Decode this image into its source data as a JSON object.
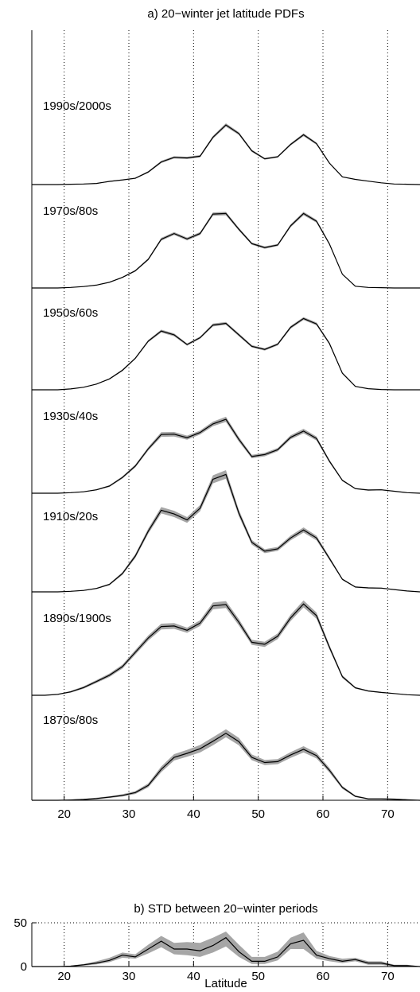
{
  "chart_data": [
    {
      "type": "area",
      "title": "a) 20−winter jet latitude PDFs",
      "xlabel": "",
      "ylabel": "",
      "xlim": [
        15,
        75
      ],
      "xticks": [
        20,
        30,
        40,
        50,
        60,
        70
      ],
      "grid": "vertical dotted lines at x ticks",
      "colors": {
        "line": "#000000",
        "band": "#a6a6a6"
      },
      "x": [
        15,
        17,
        19,
        21,
        23,
        25,
        27,
        29,
        31,
        33,
        35,
        37,
        39,
        41,
        43,
        45,
        47,
        49,
        51,
        53,
        55,
        57,
        59,
        61,
        63,
        65,
        67,
        69,
        71,
        73,
        75
      ],
      "series": [
        {
          "name": "1990s/2000s",
          "values": [
            0,
            0,
            0,
            1,
            2,
            4,
            11,
            16,
            22,
            44,
            79,
            95,
            93,
            99,
            165,
            208,
            178,
            118,
            90,
            97,
            140,
            174,
            143,
            75,
            27,
            18,
            12,
            6,
            2,
            1,
            0
          ],
          "uncertainty": [
            0,
            0,
            0,
            0.5,
            1,
            1,
            1.5,
            2,
            2,
            3,
            4,
            4,
            4,
            4,
            5,
            6,
            5,
            4,
            3,
            3,
            4,
            5,
            4,
            2,
            1,
            1,
            1,
            0.5,
            0.5,
            0,
            0
          ]
        },
        {
          "name": "1970s/80s",
          "values": [
            0,
            0,
            0,
            2,
            5,
            10,
            20,
            37,
            60,
            100,
            170,
            190,
            171,
            190,
            258,
            260,
            205,
            155,
            141,
            150,
            217,
            260,
            233,
            154,
            48,
            6,
            2,
            1,
            0,
            0,
            0
          ],
          "uncertainty": [
            0,
            0,
            0,
            0.5,
            1,
            1,
            2,
            2,
            3,
            4,
            5,
            5,
            5,
            5,
            6,
            6,
            5,
            4,
            4,
            4,
            5,
            6,
            5,
            4,
            2,
            1,
            0.5,
            0.5,
            0,
            0,
            0
          ]
        },
        {
          "name": "1950s/60s",
          "values": [
            0,
            0,
            0,
            3,
            9,
            20,
            38,
            68,
            110,
            170,
            205,
            192,
            158,
            182,
            226,
            232,
            192,
            152,
            141,
            159,
            218,
            249,
            230,
            162,
            58,
            12,
            4,
            1,
            0,
            0,
            0
          ],
          "uncertainty": [
            0,
            0,
            0,
            0.5,
            1,
            1.5,
            2,
            3,
            3,
            4,
            5,
            5,
            4,
            4,
            5,
            5,
            5,
            4,
            4,
            4,
            5,
            5,
            5,
            4,
            2,
            1,
            0.5,
            0.5,
            0,
            0,
            0
          ]
        },
        {
          "name": "1930s/40s",
          "values": [
            0,
            0,
            0,
            2,
            5,
            12,
            25,
            55,
            95,
            155,
            205,
            206,
            194,
            212,
            242,
            258,
            188,
            128,
            135,
            152,
            195,
            217,
            191,
            112,
            45,
            16,
            11,
            12,
            7,
            2,
            0
          ],
          "uncertainty": [
            0,
            0,
            0,
            1,
            1.5,
            2,
            3,
            4,
            5,
            6,
            8,
            8,
            7,
            7,
            8,
            9,
            8,
            6,
            6,
            6,
            7,
            8,
            7,
            5,
            3,
            2,
            2,
            2,
            1,
            0.5,
            0
          ]
        },
        {
          "name": "1910s/20s",
          "values": [
            0,
            0,
            0,
            2,
            5,
            12,
            26,
            64,
            125,
            212,
            285,
            272,
            251,
            292,
            393,
            410,
            275,
            173,
            142,
            150,
            188,
            216,
            188,
            117,
            44,
            17,
            14,
            13,
            8,
            3,
            0
          ],
          "uncertainty": [
            0,
            0,
            0,
            1,
            1.5,
            2,
            3,
            5,
            7,
            9,
            11,
            11,
            10,
            11,
            14,
            15,
            11,
            8,
            7,
            7,
            8,
            9,
            8,
            6,
            3,
            2,
            2,
            2,
            1,
            0.5,
            0
          ]
        },
        {
          "name": "1890s/1900s",
          "values": [
            0,
            0,
            3,
            12,
            27,
            48,
            70,
            100,
            150,
            200,
            240,
            242,
            227,
            252,
            312,
            317,
            255,
            185,
            178,
            206,
            270,
            319,
            278,
            168,
            65,
            26,
            15,
            10,
            6,
            2,
            0
          ],
          "uncertainty": [
            0,
            0,
            1,
            3,
            4,
            5,
            6,
            7,
            8,
            9,
            10,
            10,
            9,
            10,
            12,
            12,
            11,
            9,
            9,
            10,
            11,
            12,
            11,
            8,
            5,
            3,
            2,
            2,
            1,
            1,
            0
          ]
        },
        {
          "name": "1870s/80s",
          "values": [
            0,
            0,
            0,
            1,
            3,
            6,
            11,
            17,
            27,
            52,
            108,
            150,
            164,
            180,
            206,
            234,
            205,
            150,
            132,
            135,
            158,
            178,
            156,
            105,
            45,
            14,
            5,
            5,
            4,
            2,
            0
          ],
          "uncertainty": [
            0,
            0,
            0,
            1,
            2,
            3,
            3,
            4,
            5,
            7,
            10,
            11,
            12,
            13,
            14,
            14,
            13,
            10,
            9,
            9,
            10,
            11,
            10,
            8,
            5,
            3,
            2,
            2,
            2,
            1,
            0
          ]
        }
      ]
    },
    {
      "type": "line",
      "title": "b) STD between 20−winter periods",
      "xlabel": "Latitude",
      "ylabel": "",
      "xlim": [
        15,
        75
      ],
      "ylim": [
        0,
        50
      ],
      "xticks": [
        20,
        30,
        40,
        50,
        60,
        70
      ],
      "yticks": [
        0,
        50
      ],
      "grid": "dotted vertical lines at x ticks, dotted line at y=50",
      "colors": {
        "line": "#000000",
        "band": "#a6a6a6"
      },
      "x": [
        15,
        17,
        19,
        21,
        23,
        25,
        27,
        29,
        31,
        33,
        35,
        37,
        39,
        41,
        43,
        45,
        47,
        49,
        51,
        53,
        55,
        57,
        59,
        61,
        63,
        65,
        67,
        69,
        71,
        73,
        75
      ],
      "values": [
        0,
        0,
        0,
        0.5,
        2,
        4,
        7,
        13,
        11,
        20,
        29,
        20,
        20,
        18,
        24,
        33,
        17,
        6,
        6,
        11,
        26,
        30,
        13,
        9,
        6,
        8,
        4,
        4,
        1,
        1,
        0
      ],
      "lower": [
        0,
        0,
        0,
        0,
        1,
        2.5,
        5,
        10,
        9,
        15,
        22,
        14,
        13,
        11,
        16,
        23,
        11,
        3,
        3,
        7,
        20,
        20,
        9,
        6,
        4,
        6,
        2,
        2,
        0,
        0,
        0
      ],
      "upper": [
        0,
        0,
        0,
        1,
        3,
        6,
        10,
        16,
        14,
        25,
        35,
        27,
        28,
        27,
        33,
        40,
        25,
        11,
        11,
        17,
        33,
        39,
        18,
        12,
        9,
        10,
        6,
        6,
        2,
        2,
        0
      ]
    }
  ]
}
